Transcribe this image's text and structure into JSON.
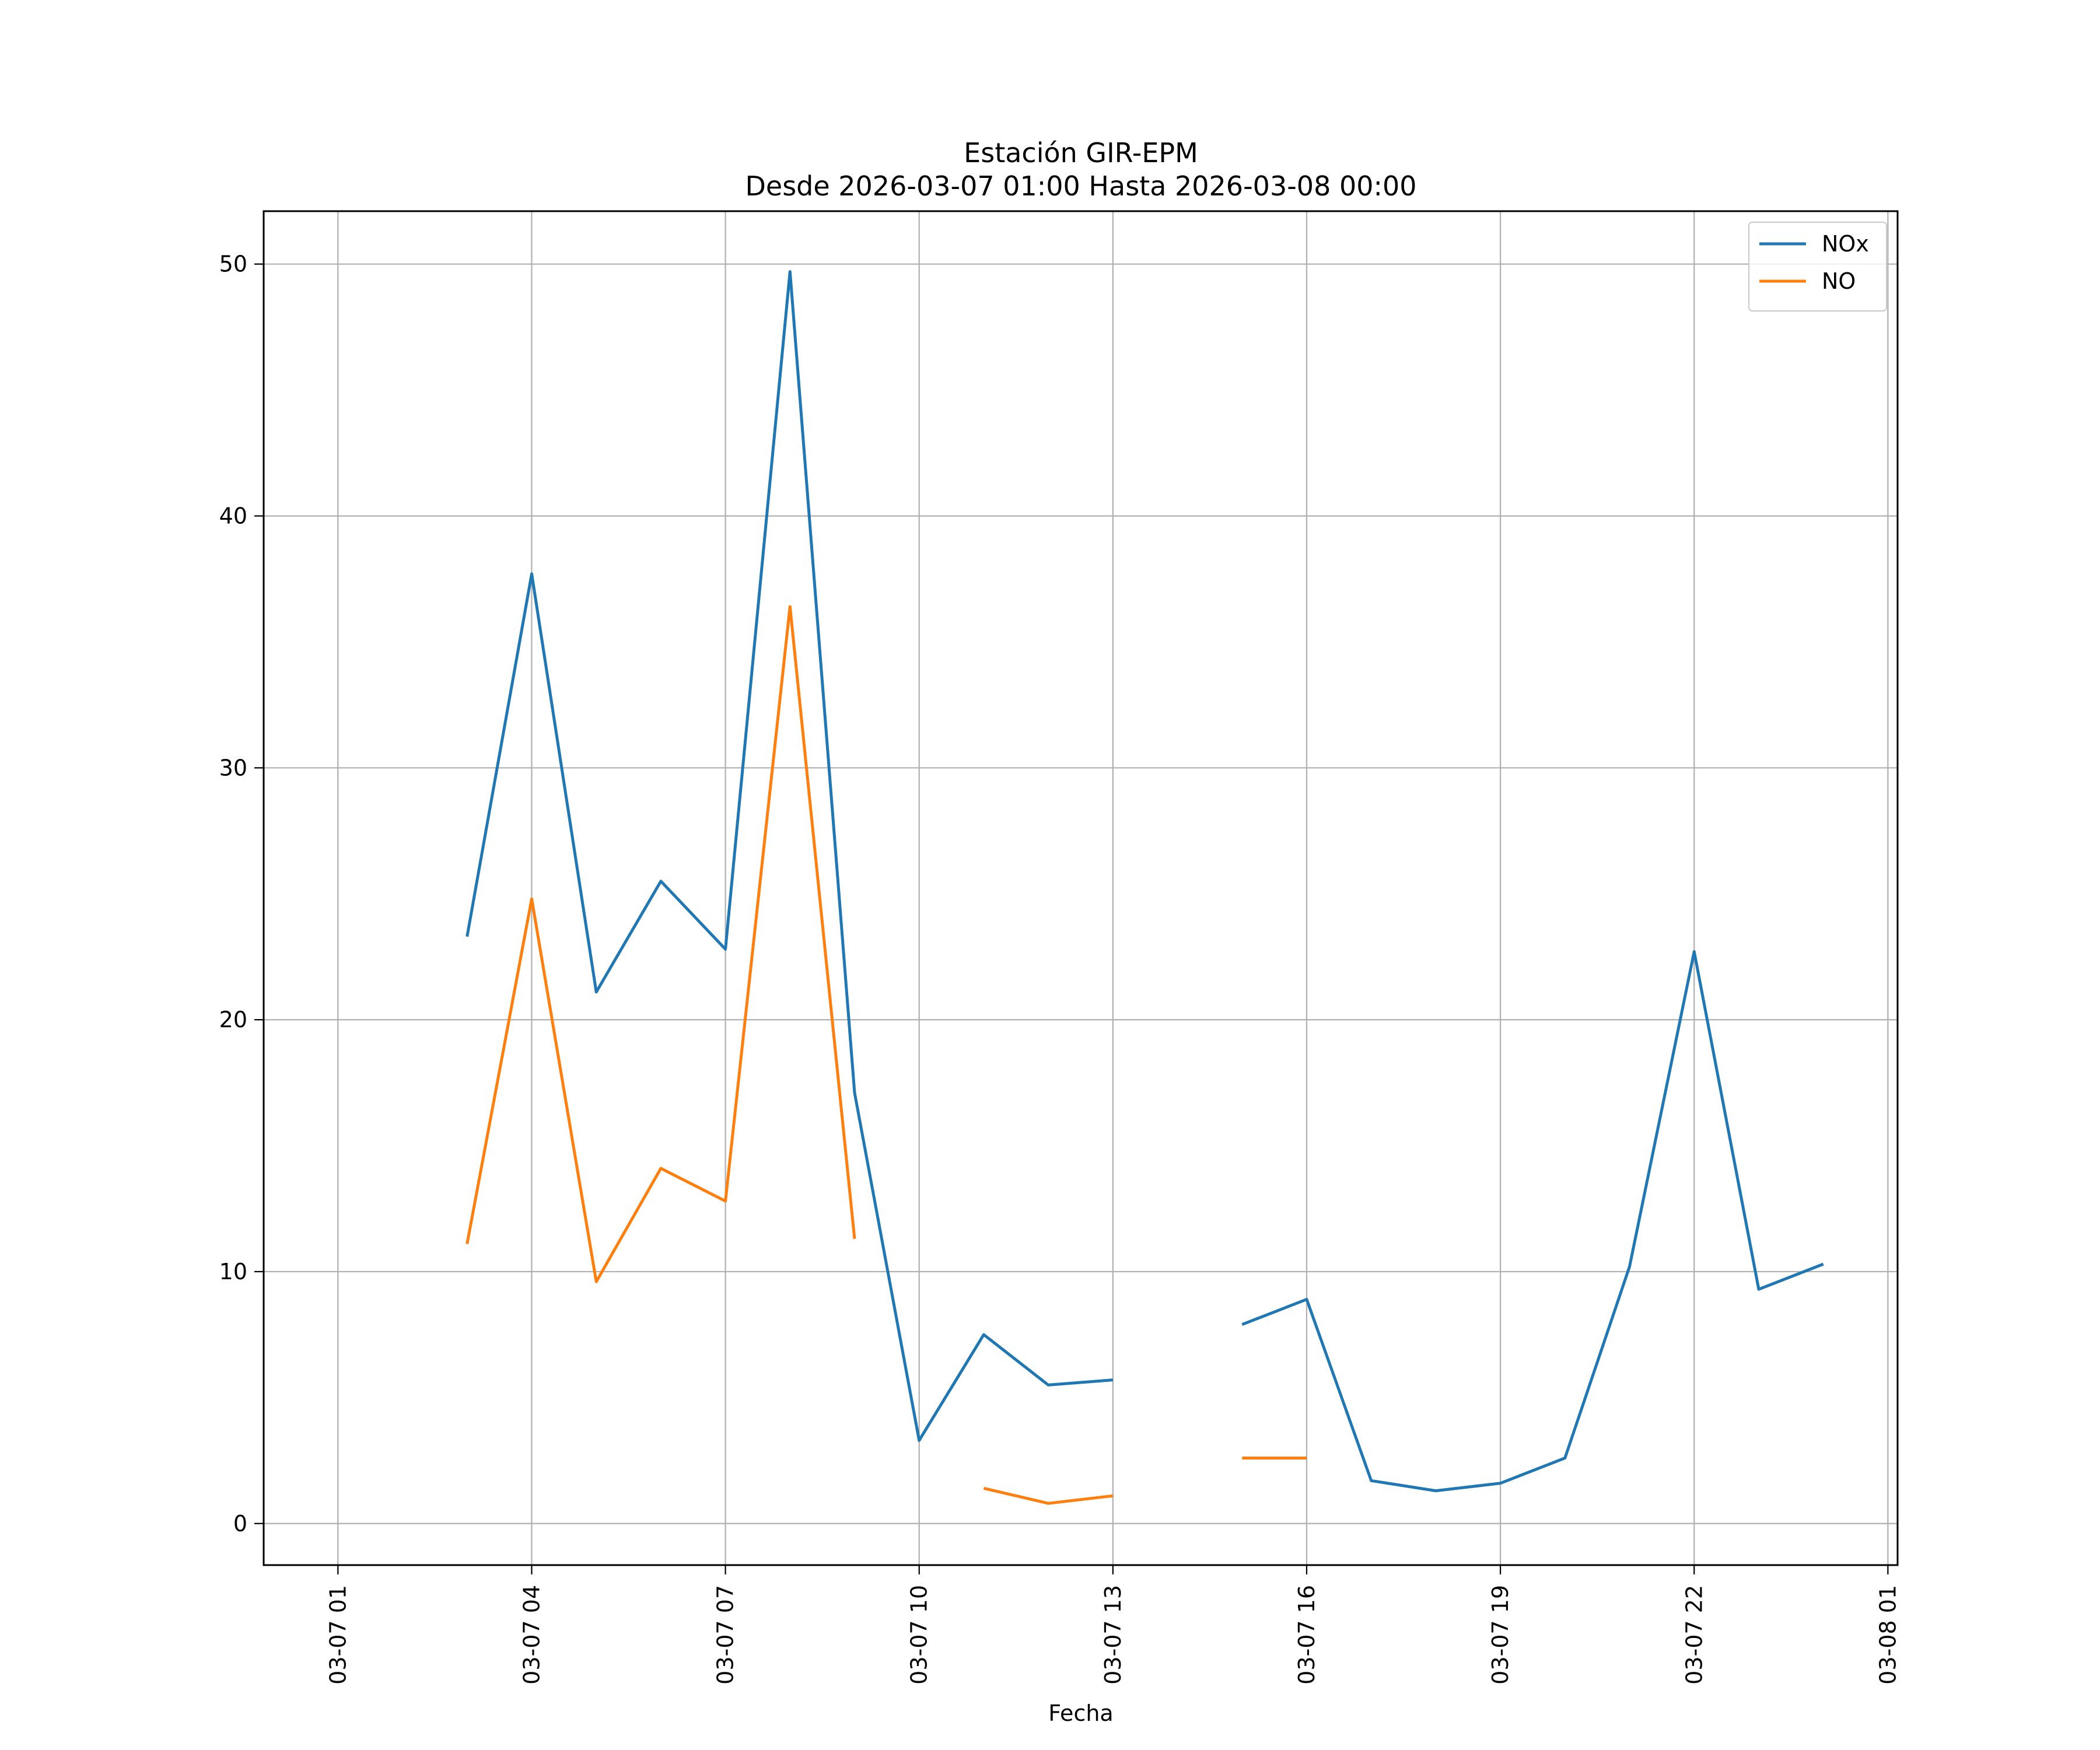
{
  "chart_data": {
    "type": "line",
    "title": "Estación GIR-EPM",
    "subtitle": "Desde 2026-03-07 01:00 Hasta 2026-03-08 00:00",
    "xlabel": "Fecha",
    "ylabel": "",
    "x": [
      "2026-03-07 03:00",
      "2026-03-07 04:00",
      "2026-03-07 05:00",
      "2026-03-07 06:00",
      "2026-03-07 07:00",
      "2026-03-07 08:00",
      "2026-03-07 09:00",
      "2026-03-07 10:00",
      "2026-03-07 11:00",
      "2026-03-07 12:00",
      "2026-03-07 13:00",
      "2026-03-07 14:00",
      "2026-03-07 15:00",
      "2026-03-07 16:00",
      "2026-03-07 17:00",
      "2026-03-07 18:00",
      "2026-03-07 19:00",
      "2026-03-07 20:00",
      "2026-03-07 21:00",
      "2026-03-07 22:00",
      "2026-03-07 23:00",
      "2026-03-08 00:00"
    ],
    "series": [
      {
        "name": "NOx",
        "color": "#1f77b4",
        "values": [
          23.3,
          37.7,
          21.1,
          25.5,
          22.8,
          49.7,
          17.1,
          3.3,
          7.5,
          5.5,
          5.7,
          null,
          7.9,
          8.9,
          1.7,
          1.3,
          1.6,
          2.6,
          10.2,
          22.7,
          9.3,
          10.3
        ]
      },
      {
        "name": "NO",
        "color": "#ff7f0e",
        "values": [
          11.1,
          24.8,
          9.6,
          14.1,
          12.8,
          36.4,
          11.3,
          null,
          1.4,
          0.8,
          1.1,
          null,
          2.6,
          2.6,
          null,
          null,
          null,
          null,
          null,
          null,
          null,
          null
        ]
      }
    ],
    "xticks": [
      "03-07 01",
      "03-07 04",
      "03-07 07",
      "03-07 10",
      "03-07 13",
      "03-07 16",
      "03-07 19",
      "03-07 22",
      "03-08 01"
    ],
    "xlim": [
      "2026-03-06 23:51",
      "2026-03-08 01:09"
    ],
    "yticks": [
      0,
      10,
      20,
      30,
      40,
      50
    ],
    "ylim": [
      -1.65,
      52.1
    ],
    "grid": true,
    "legend": "top-right"
  }
}
